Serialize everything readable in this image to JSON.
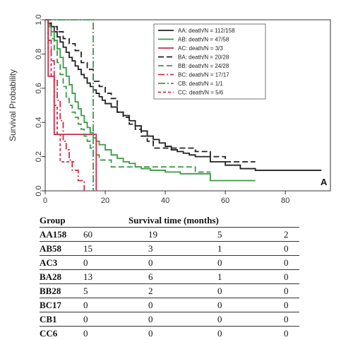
{
  "chart_data": {
    "type": "line",
    "title": "",
    "xlabel": "",
    "ylabel": "Survival Probability",
    "xlim": [
      0,
      95
    ],
    "ylim": [
      0,
      1
    ],
    "x_ticks": [
      0,
      20,
      40,
      60,
      80
    ],
    "y_ticks": [
      0.0,
      0.2,
      0.4,
      0.6,
      0.8,
      1.0
    ],
    "y_tick_labels": [
      "0.0",
      "0.2",
      "0.4",
      "0.6",
      "0.8",
      "1.0"
    ],
    "panel_label": "A",
    "legend_position": "top-right",
    "series": [
      {
        "name": "AA: death/N = 112/158",
        "color": "#222222",
        "dash": "",
        "x": [
          0,
          1,
          2,
          3,
          4,
          5,
          6,
          7,
          8,
          9,
          10,
          11,
          12,
          13,
          14,
          15,
          16,
          17,
          18,
          19,
          20,
          22,
          24,
          26,
          28,
          30,
          32,
          34,
          36,
          38,
          40,
          42,
          44,
          46,
          48,
          50,
          55,
          60,
          65,
          70,
          75,
          80,
          85,
          92
        ],
        "y": [
          1.0,
          0.98,
          0.96,
          0.93,
          0.9,
          0.87,
          0.84,
          0.81,
          0.78,
          0.76,
          0.73,
          0.71,
          0.68,
          0.66,
          0.63,
          0.61,
          0.59,
          0.57,
          0.55,
          0.53,
          0.51,
          0.49,
          0.46,
          0.44,
          0.41,
          0.38,
          0.35,
          0.32,
          0.3,
          0.28,
          0.26,
          0.24,
          0.23,
          0.22,
          0.21,
          0.2,
          0.17,
          0.15,
          0.13,
          0.12,
          0.12,
          0.12,
          0.12,
          0.12
        ]
      },
      {
        "name": "AB: death/N = 47/58",
        "color": "#3a9a48",
        "dash": "",
        "x": [
          0,
          1,
          2,
          3,
          4,
          5,
          6,
          7,
          8,
          9,
          10,
          11,
          12,
          13,
          14,
          15,
          16,
          17,
          18,
          20,
          22,
          24,
          26,
          28,
          30,
          32,
          35,
          40,
          45,
          50,
          55,
          60,
          65,
          70
        ],
        "y": [
          1.0,
          0.97,
          0.93,
          0.88,
          0.83,
          0.78,
          0.72,
          0.67,
          0.62,
          0.57,
          0.52,
          0.48,
          0.44,
          0.4,
          0.37,
          0.34,
          0.31,
          0.29,
          0.27,
          0.24,
          0.21,
          0.19,
          0.17,
          0.16,
          0.14,
          0.13,
          0.12,
          0.11,
          0.1,
          0.1,
          0.06,
          0.06,
          0.06,
          0.06
        ]
      },
      {
        "name": "AC: death/N = 3/3",
        "color": "#c72f4a",
        "dash": "",
        "x": [
          0,
          1,
          2,
          3,
          4,
          5,
          8,
          12,
          16,
          17
        ],
        "y": [
          1.0,
          0.67,
          0.67,
          0.33,
          0.33,
          0.33,
          0.33,
          0.33,
          0.33,
          0.0
        ]
      },
      {
        "name": "BA: death/N = 20/28",
        "color": "#222222",
        "dash": "8,4",
        "x": [
          0,
          2,
          4,
          6,
          8,
          10,
          12,
          14,
          16,
          18,
          20,
          22,
          24,
          26,
          28,
          30,
          32,
          34,
          36,
          38,
          40,
          45,
          50,
          55,
          60,
          65,
          70
        ],
        "y": [
          1.0,
          0.96,
          0.93,
          0.89,
          0.86,
          0.82,
          0.75,
          0.71,
          0.64,
          0.61,
          0.57,
          0.54,
          0.46,
          0.43,
          0.39,
          0.36,
          0.32,
          0.29,
          0.25,
          0.25,
          0.25,
          0.25,
          0.23,
          0.2,
          0.17,
          0.17,
          0.17
        ]
      },
      {
        "name": "BB: death/N = 24/28",
        "color": "#3a9a48",
        "dash": "8,4",
        "x": [
          0,
          1,
          2,
          3,
          4,
          5,
          6,
          7,
          8,
          9,
          10,
          11,
          12,
          13,
          14,
          15,
          16,
          18,
          20,
          22,
          25,
          30,
          35,
          40,
          45,
          50,
          55
        ],
        "y": [
          1.0,
          0.96,
          0.89,
          0.82,
          0.75,
          0.68,
          0.61,
          0.54,
          0.5,
          0.46,
          0.43,
          0.39,
          0.36,
          0.32,
          0.29,
          0.25,
          0.21,
          0.18,
          0.18,
          0.14,
          0.14,
          0.14,
          0.14,
          0.14,
          0.14,
          0.11,
          0.11
        ]
      },
      {
        "name": "BC: death/N = 17/17",
        "color": "#c72f4a",
        "dash": "9,3,2,3",
        "x": [
          0,
          1,
          2,
          3,
          4,
          5,
          6,
          7,
          8,
          9,
          10,
          11,
          12,
          13
        ],
        "y": [
          1.0,
          0.88,
          0.76,
          0.65,
          0.53,
          0.41,
          0.29,
          0.24,
          0.18,
          0.12,
          0.12,
          0.06,
          0.06,
          0.0
        ]
      },
      {
        "name": "CB: death/N = 1/1",
        "color": "#3a9a48",
        "dash": "10,3,2,3",
        "x": [
          0,
          15,
          16
        ],
        "y": [
          1.0,
          1.0,
          0.0
        ]
      },
      {
        "name": "CC: death/N = 5/6",
        "color": "#c72f4a",
        "dash": "4,3",
        "x": [
          0,
          1,
          2,
          3,
          4,
          5,
          6,
          8,
          10
        ],
        "y": [
          1.0,
          0.83,
          0.67,
          0.5,
          0.33,
          0.17,
          0.17,
          0.17,
          0.17
        ]
      }
    ]
  },
  "table": {
    "headers": [
      "Group",
      "Survival time (months)"
    ],
    "rows": [
      {
        "group": "AA158",
        "values": [
          "60",
          "19",
          "5",
          "2"
        ]
      },
      {
        "group": "AB58",
        "values": [
          "15",
          "3",
          "1",
          "0"
        ]
      },
      {
        "group": "AC3",
        "values": [
          "0",
          "0",
          "0",
          "0"
        ]
      },
      {
        "group": "BA28",
        "values": [
          "13",
          "6",
          "1",
          "0"
        ]
      },
      {
        "group": "BB28",
        "values": [
          "5",
          "2",
          "0",
          "0"
        ]
      },
      {
        "group": "BC17",
        "values": [
          "0",
          "0",
          "0",
          "0"
        ]
      },
      {
        "group": "CB1",
        "values": [
          "0",
          "0",
          "0",
          "0"
        ]
      },
      {
        "group": "CC6",
        "values": [
          "0",
          "0",
          "0",
          "0"
        ]
      }
    ]
  }
}
